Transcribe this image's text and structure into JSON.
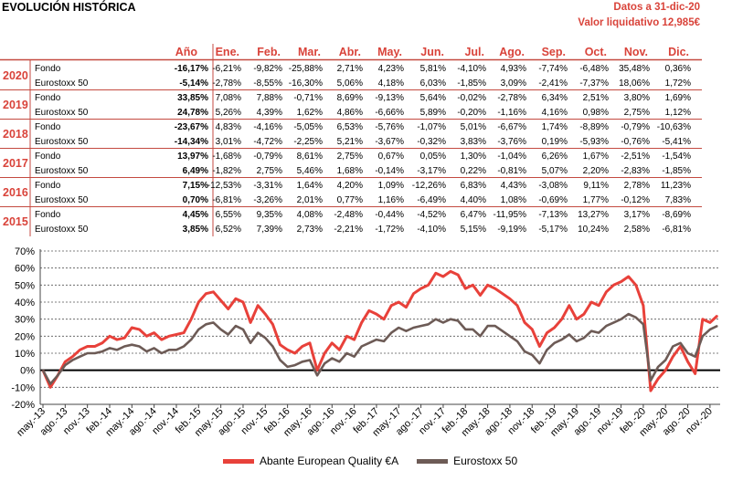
{
  "header": {
    "title": "EVOLUCIÓN HISTÓRICA",
    "date_line": "Datos a 31-dic-20",
    "nav_line": "Valor liquidativo 12,985€"
  },
  "colors": {
    "fund": "#e8413a",
    "index": "#6d5b56",
    "accent": "#d9433a",
    "border": "#c44a40"
  },
  "table": {
    "headers": [
      "Año",
      "Ene.",
      "Feb.",
      "Mar.",
      "Abr.",
      "May.",
      "Jun.",
      "Jul.",
      "Ago.",
      "Sep.",
      "Oct.",
      "Nov.",
      "Dic."
    ],
    "years": [
      {
        "year": "2020",
        "rows": [
          {
            "label": "Fondo",
            "ytd": "-16,17%",
            "months": [
              "-6,21%",
              "-9,82%",
              "-25,88%",
              "2,71%",
              "4,23%",
              "5,81%",
              "-4,10%",
              "4,93%",
              "-7,74%",
              "-6,48%",
              "35,48%",
              "0,36%"
            ]
          },
          {
            "label": "Eurostoxx 50",
            "ytd": "-5,14%",
            "months": [
              "-2,78%",
              "-8,55%",
              "-16,30%",
              "5,06%",
              "4,18%",
              "6,03%",
              "-1,85%",
              "3,09%",
              "-2,41%",
              "-7,37%",
              "18,06%",
              "1,72%"
            ]
          }
        ]
      },
      {
        "year": "2019",
        "rows": [
          {
            "label": "Fondo",
            "ytd": "33,85%",
            "months": [
              "7,08%",
              "7,88%",
              "-0,71%",
              "8,69%",
              "-9,13%",
              "5,64%",
              "-0,02%",
              "-2,78%",
              "6,34%",
              "2,51%",
              "3,80%",
              "1,69%"
            ]
          },
          {
            "label": "Eurostoxx 50",
            "ytd": "24,78%",
            "months": [
              "5,26%",
              "4,39%",
              "1,62%",
              "4,86%",
              "-6,66%",
              "5,89%",
              "-0,20%",
              "-1,16%",
              "4,16%",
              "0,98%",
              "2,75%",
              "1,12%"
            ]
          }
        ]
      },
      {
        "year": "2018",
        "rows": [
          {
            "label": "Fondo",
            "ytd": "-23,67%",
            "months": [
              "4,83%",
              "-4,16%",
              "-5,05%",
              "6,53%",
              "-5,76%",
              "-1,07%",
              "5,01%",
              "-6,67%",
              "1,74%",
              "-8,89%",
              "-0,79%",
              "-10,63%"
            ]
          },
          {
            "label": "Eurostoxx 50",
            "ytd": "-14,34%",
            "months": [
              "3,01%",
              "-4,72%",
              "-2,25%",
              "5,21%",
              "-3,67%",
              "-0,32%",
              "3,83%",
              "-3,76%",
              "0,19%",
              "-5,93%",
              "-0,76%",
              "-5,41%"
            ]
          }
        ]
      },
      {
        "year": "2017",
        "rows": [
          {
            "label": "Fondo",
            "ytd": "13,97%",
            "months": [
              "-1,68%",
              "-0,79%",
              "8,61%",
              "2,75%",
              "0,67%",
              "0,05%",
              "1,30%",
              "-1,04%",
              "6,26%",
              "1,67%",
              "-2,51%",
              "-1,54%"
            ]
          },
          {
            "label": "Eurostoxx 50",
            "ytd": "6,49%",
            "months": [
              "-1,82%",
              "2,75%",
              "5,46%",
              "1,68%",
              "-0,14%",
              "-3,17%",
              "0,22%",
              "-0,81%",
              "5,07%",
              "2,20%",
              "-2,83%",
              "-1,85%"
            ]
          }
        ]
      },
      {
        "year": "2016",
        "rows": [
          {
            "label": "Fondo",
            "ytd": "7,15%",
            "months": [
              "-12,53%",
              "-3,31%",
              "1,64%",
              "4,20%",
              "1,09%",
              "-12,26%",
              "6,83%",
              "4,43%",
              "-3,08%",
              "9,11%",
              "2,78%",
              "11,23%"
            ]
          },
          {
            "label": "Eurostoxx 50",
            "ytd": "0,70%",
            "months": [
              "-6,81%",
              "-3,26%",
              "2,01%",
              "0,77%",
              "1,16%",
              "-6,49%",
              "4,40%",
              "1,08%",
              "-0,69%",
              "1,77%",
              "-0,12%",
              "7,83%"
            ]
          }
        ]
      },
      {
        "year": "2015",
        "rows": [
          {
            "label": "Fondo",
            "ytd": "4,45%",
            "months": [
              "6,55%",
              "9,35%",
              "4,08%",
              "-2,48%",
              "-0,44%",
              "-4,52%",
              "6,47%",
              "-11,95%",
              "-7,13%",
              "13,27%",
              "3,17%",
              "-8,69%"
            ]
          },
          {
            "label": "Eurostoxx 50",
            "ytd": "3,85%",
            "months": [
              "6,52%",
              "7,39%",
              "2,73%",
              "-2,21%",
              "-1,72%",
              "-4,10%",
              "5,15%",
              "-9,19%",
              "-5,17%",
              "10,24%",
              "2,58%",
              "-6,81%"
            ]
          }
        ]
      }
    ]
  },
  "chart_data": {
    "type": "line",
    "ylim": [
      -20,
      70
    ],
    "yticks": [
      "70%",
      "60%",
      "50%",
      "40%",
      "30%",
      "20%",
      "10%",
      "0%",
      "-10%",
      "-20%"
    ],
    "x": [
      "may.-13",
      "jun.-13",
      "jul.-13",
      "ago.-13",
      "sep.-13",
      "oct.-13",
      "nov.-13",
      "dic.-13",
      "ene.-14",
      "feb.-14",
      "mar.-14",
      "abr.-14",
      "may.-14",
      "jun.-14",
      "jul.-14",
      "ago.-14",
      "sep.-14",
      "oct.-14",
      "nov.-14",
      "dic.-14",
      "ene.-15",
      "feb.-15",
      "mar.-15",
      "abr.-15",
      "may.-15",
      "jun.-15",
      "jul.-15",
      "ago.-15",
      "sep.-15",
      "oct.-15",
      "nov.-15",
      "dic.-15",
      "ene.-16",
      "feb.-16",
      "mar.-16",
      "abr.-16",
      "may.-16",
      "jun.-16",
      "jul.-16",
      "ago.-16",
      "sep.-16",
      "oct.-16",
      "nov.-16",
      "dic.-16",
      "ene.-17",
      "feb.-17",
      "mar.-17",
      "abr.-17",
      "may.-17",
      "jun.-17",
      "jul.-17",
      "ago.-17",
      "sep.-17",
      "oct.-17",
      "nov.-17",
      "dic.-17",
      "ene.-18",
      "feb.-18",
      "mar.-18",
      "abr.-18",
      "may.-18",
      "jun.-18",
      "jul.-18",
      "ago.-18",
      "sep.-18",
      "oct.-18",
      "nov.-18",
      "dic.-18",
      "ene.-19",
      "feb.-19",
      "mar.-19",
      "abr.-19",
      "may.-19",
      "jun.-19",
      "jul.-19",
      "ago.-19",
      "sep.-19",
      "oct.-19",
      "nov.-19",
      "dic.-19",
      "ene.-20",
      "feb.-20",
      "mar.-20",
      "abr.-20",
      "may.-20",
      "jun.-20",
      "jul.-20",
      "ago.-20",
      "sep.-20",
      "oct.-20",
      "nov.-20",
      "dic.-20"
    ],
    "xtick_labels": [
      "may.-13",
      "ago.-13",
      "nov.-13",
      "feb.-14",
      "may.-14",
      "ago.-14",
      "nov.-14",
      "feb.-15",
      "may.-15",
      "ago.-15",
      "nov.-15",
      "feb.-16",
      "may.-16",
      "ago.-16",
      "nov.-16",
      "feb.-17",
      "may.-17",
      "ago.-17",
      "nov.-17",
      "feb.-18",
      "may.-18",
      "ago.-18",
      "nov.-18",
      "feb.-19",
      "may.-19",
      "ago.-19",
      "nov.-19",
      "feb.-20",
      "may.-20",
      "ago.-20",
      "nov.-20"
    ],
    "series": [
      {
        "name": "Abante European Quality €A",
        "color": "#e8413a",
        "values": [
          0,
          -10,
          -3,
          5,
          8,
          12,
          14,
          14,
          16,
          20,
          18,
          19,
          25,
          24,
          20,
          22,
          18,
          20,
          21,
          22,
          30,
          40,
          45,
          46,
          41,
          36,
          42,
          40,
          28,
          38,
          33,
          27,
          15,
          12,
          10,
          14,
          16,
          0,
          10,
          16,
          12,
          20,
          18,
          28,
          35,
          33,
          30,
          38,
          40,
          37,
          45,
          48,
          50,
          57,
          55,
          58,
          56,
          48,
          50,
          44,
          50,
          48,
          45,
          42,
          38,
          28,
          24,
          14,
          22,
          25,
          30,
          38,
          30,
          33,
          40,
          38,
          46,
          50,
          52,
          55,
          50,
          38,
          -12,
          -5,
          0,
          8,
          14,
          5,
          -2,
          30,
          28,
          32
        ]
      },
      {
        "name": "Eurostoxx 50",
        "color": "#6d5b56",
        "values": [
          0,
          -8,
          -3,
          3,
          6,
          8,
          10,
          10,
          11,
          13,
          12,
          14,
          15,
          14,
          11,
          13,
          10,
          12,
          12,
          14,
          18,
          24,
          27,
          28,
          24,
          21,
          26,
          24,
          16,
          22,
          19,
          14,
          6,
          2,
          3,
          5,
          6,
          -3,
          4,
          7,
          5,
          10,
          8,
          14,
          16,
          18,
          17,
          22,
          25,
          23,
          25,
          26,
          27,
          30,
          28,
          30,
          29,
          24,
          24,
          20,
          26,
          26,
          23,
          20,
          17,
          11,
          9,
          4,
          12,
          16,
          18,
          21,
          17,
          19,
          23,
          22,
          26,
          28,
          30,
          33,
          31,
          27,
          -6,
          2,
          6,
          14,
          16,
          10,
          8,
          20,
          24,
          26
        ]
      }
    ]
  },
  "legend": {
    "fund_label": "Abante European Quality €A",
    "index_label": "Eurostoxx 50"
  }
}
